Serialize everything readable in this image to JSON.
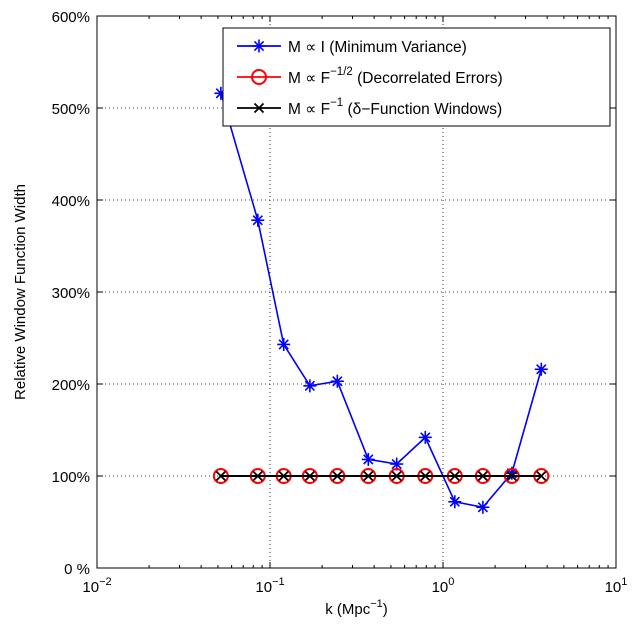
{
  "chart_data": {
    "type": "line",
    "xscale": "log",
    "xlim": [
      0.01,
      10
    ],
    "ylim": [
      0,
      600
    ],
    "xlabel": "k (Mpc",
    "xlabel_sup": "−1",
    "xlabel_close": ")",
    "ylabel": "Relative Window Function Width",
    "grid": "dotted",
    "legend_position": "top-right",
    "xticks": [
      {
        "value": 0.01,
        "base": "10",
        "exp": "−2"
      },
      {
        "value": 0.1,
        "base": "10",
        "exp": "−1"
      },
      {
        "value": 1,
        "base": "10",
        "exp": "0"
      },
      {
        "value": 10,
        "base": "10",
        "exp": "1"
      }
    ],
    "yticks": [
      {
        "value": 0,
        "label": "0  %"
      },
      {
        "value": 100,
        "label": "100%"
      },
      {
        "value": 200,
        "label": "200%"
      },
      {
        "value": 300,
        "label": "300%"
      },
      {
        "value": 400,
        "label": "400%"
      },
      {
        "value": 500,
        "label": "500%"
      },
      {
        "value": 600,
        "label": "600%"
      }
    ],
    "x": [
      0.052,
      0.085,
      0.12,
      0.17,
      0.245,
      0.37,
      0.54,
      0.79,
      1.17,
      1.7,
      2.5,
      3.7
    ],
    "series": [
      {
        "legend": {
          "pre": "M ∝ I  (Minimum Variance)",
          "sup": "",
          "post": ""
        },
        "color": "#0000ff",
        "marker": "asterisk",
        "values": [
          516,
          378,
          243,
          198,
          203,
          118,
          113,
          142,
          72,
          66,
          103,
          216
        ]
      },
      {
        "legend": {
          "pre": "M ∝ F",
          "sup": "−1/2",
          "post": "  (Decorrelated Errors)"
        },
        "color": "#ff0000",
        "marker": "circle",
        "values": [
          100,
          100,
          100,
          100,
          100,
          100,
          100,
          100,
          100,
          100,
          100,
          100
        ]
      },
      {
        "legend": {
          "pre": "M ∝ F",
          "sup": "−1",
          "post": "  (δ−Function Windows)"
        },
        "color": "#000000",
        "marker": "x",
        "values": [
          100,
          100,
          100,
          100,
          100,
          100,
          100,
          100,
          100,
          100,
          100,
          100
        ]
      }
    ]
  }
}
